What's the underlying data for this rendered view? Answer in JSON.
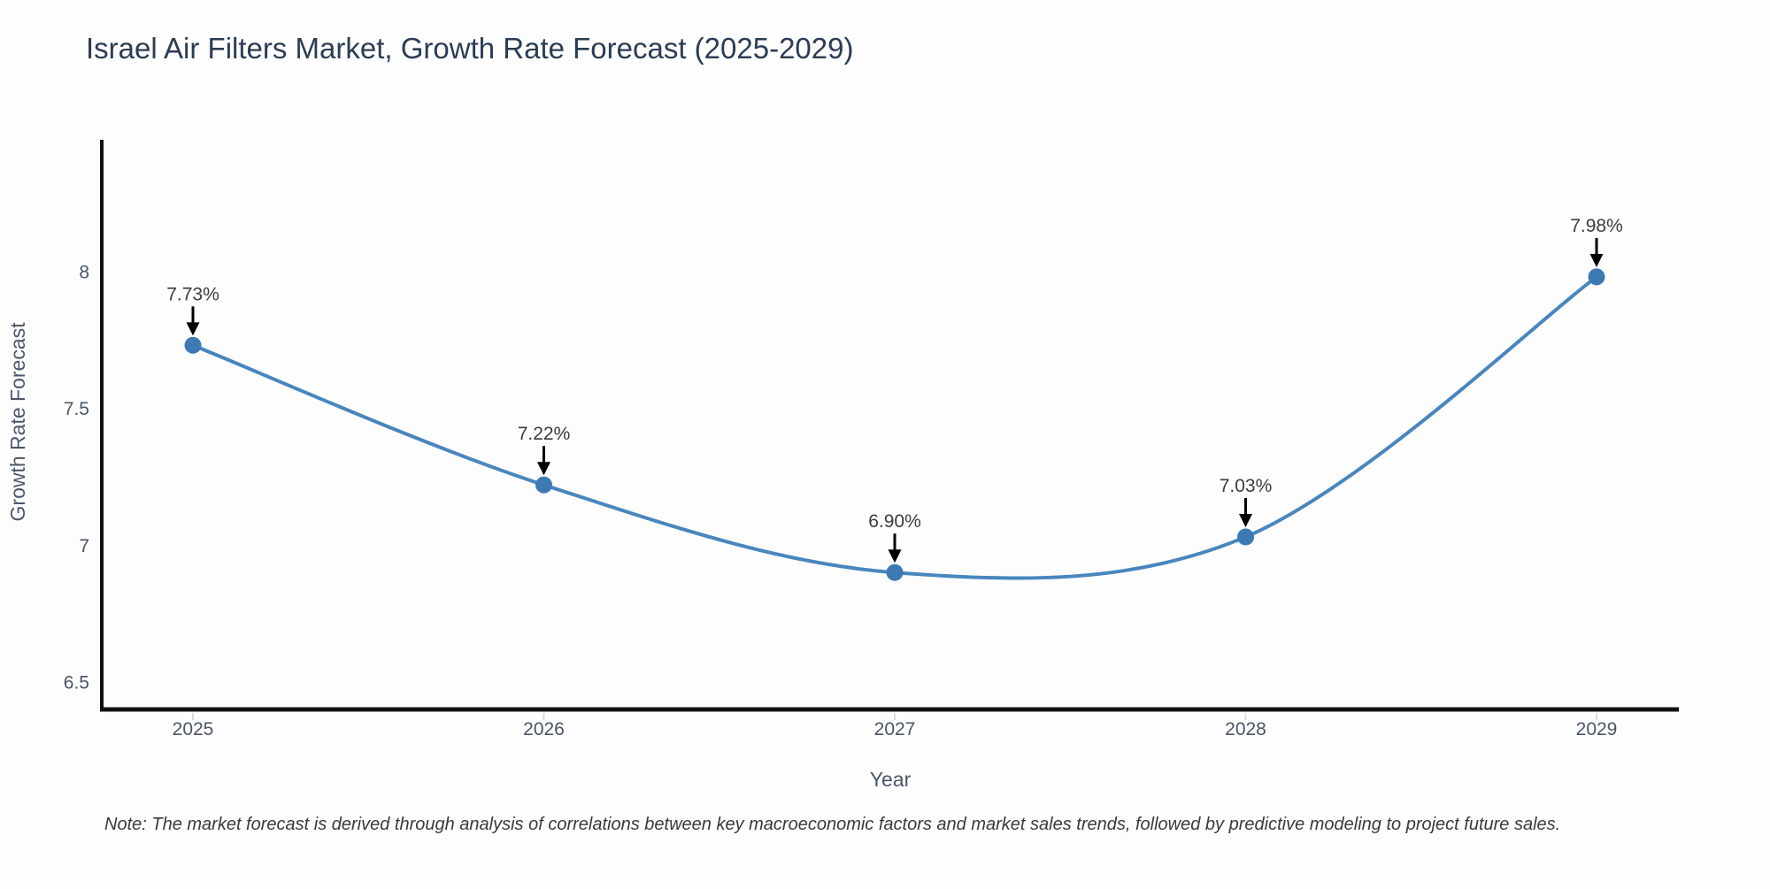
{
  "title": "Israel Air Filters Market, Growth Rate Forecast (2025-2029)",
  "note": "Note: The market forecast is derived through analysis of correlations between key macroeconomic factors and market sales trends, followed by predictive modeling to project future sales.",
  "chart_data": {
    "type": "line",
    "title": "Israel Air Filters Market, Growth Rate Forecast (2025-2029)",
    "xlabel": "Year",
    "ylabel": "Growth Rate Forecast",
    "categories": [
      "2025",
      "2026",
      "2027",
      "2028",
      "2029"
    ],
    "series": [
      {
        "name": "Growth Rate Forecast",
        "values": [
          7.73,
          7.22,
          6.9,
          7.03,
          7.98
        ],
        "labels": [
          "7.73%",
          "7.22%",
          "6.90%",
          "7.03%",
          "7.98%"
        ]
      }
    ],
    "line_shape": "spline",
    "markers": true,
    "annotation_style": "value-with-down-arrow",
    "yticks": [
      "6.5",
      "7",
      "7.5",
      "8"
    ],
    "ytick_values": [
      6.5,
      7.0,
      7.5,
      8.0
    ],
    "ylim": [
      6.4,
      8.5
    ],
    "grid": false,
    "legend_position": "none",
    "colors": {
      "line": "#4886be",
      "marker": "#3d7ab4",
      "arrow": "#000000",
      "title_text": "#2b3d54",
      "axis_text": "#4a5568",
      "annotation_text": "#3c3c3c",
      "note_text": "#3a3a3a",
      "axis_line": "#111111",
      "x_tick_mark": "#d9dce0",
      "background": "#fdfdfd"
    }
  }
}
